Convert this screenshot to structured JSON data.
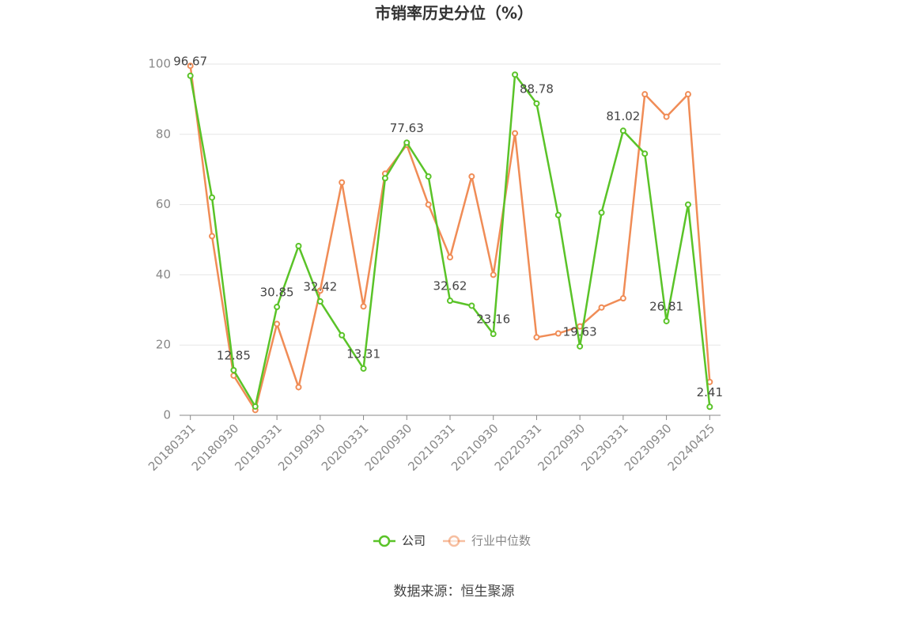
{
  "chart_data": {
    "type": "line",
    "title": "市销率历史分位（%）",
    "source": "数据来源：恒生聚源",
    "categories": [
      "20180331",
      null,
      "20180930",
      null,
      "20190331",
      null,
      "20190930",
      null,
      "20200331",
      null,
      "20200930",
      null,
      "20210331",
      null,
      "20210930",
      null,
      "20220331",
      null,
      "20220930",
      null,
      "20230331",
      null,
      "20230930",
      null,
      "20240425"
    ],
    "series": [
      {
        "name": "公司",
        "color": "#5ac328",
        "values": [
          96.67,
          62,
          12.85,
          2.5,
          30.85,
          48.2,
          32.42,
          22.8,
          13.31,
          67.5,
          77.63,
          68,
          32.62,
          31.2,
          23.16,
          97,
          88.78,
          57,
          19.63,
          57.7,
          81.02,
          74.5,
          26.81,
          60,
          2.41
        ],
        "value_labels": [
          "96.67",
          null,
          "12.85",
          null,
          "30.85",
          null,
          "32.42",
          null,
          "13.31",
          null,
          "77.63",
          null,
          "32.62",
          null,
          "23.16",
          null,
          "88.78",
          null,
          "19.63",
          null,
          "81.02",
          null,
          "26.81",
          null,
          "2.41"
        ]
      },
      {
        "name": "行业中位数",
        "color": "#f08c56",
        "values": [
          99.5,
          51,
          11.3,
          1.5,
          26,
          8,
          35.5,
          66.3,
          31,
          68.8,
          77,
          60,
          45,
          68,
          40,
          80.3,
          22.2,
          23.3,
          25.3,
          30.7,
          33.3,
          91.4,
          85,
          91.4,
          9.5
        ]
      }
    ],
    "ylim": [
      0,
      100
    ],
    "yticks": [
      0,
      20,
      40,
      60,
      80,
      100
    ],
    "grid": true,
    "legend": "bottom"
  }
}
